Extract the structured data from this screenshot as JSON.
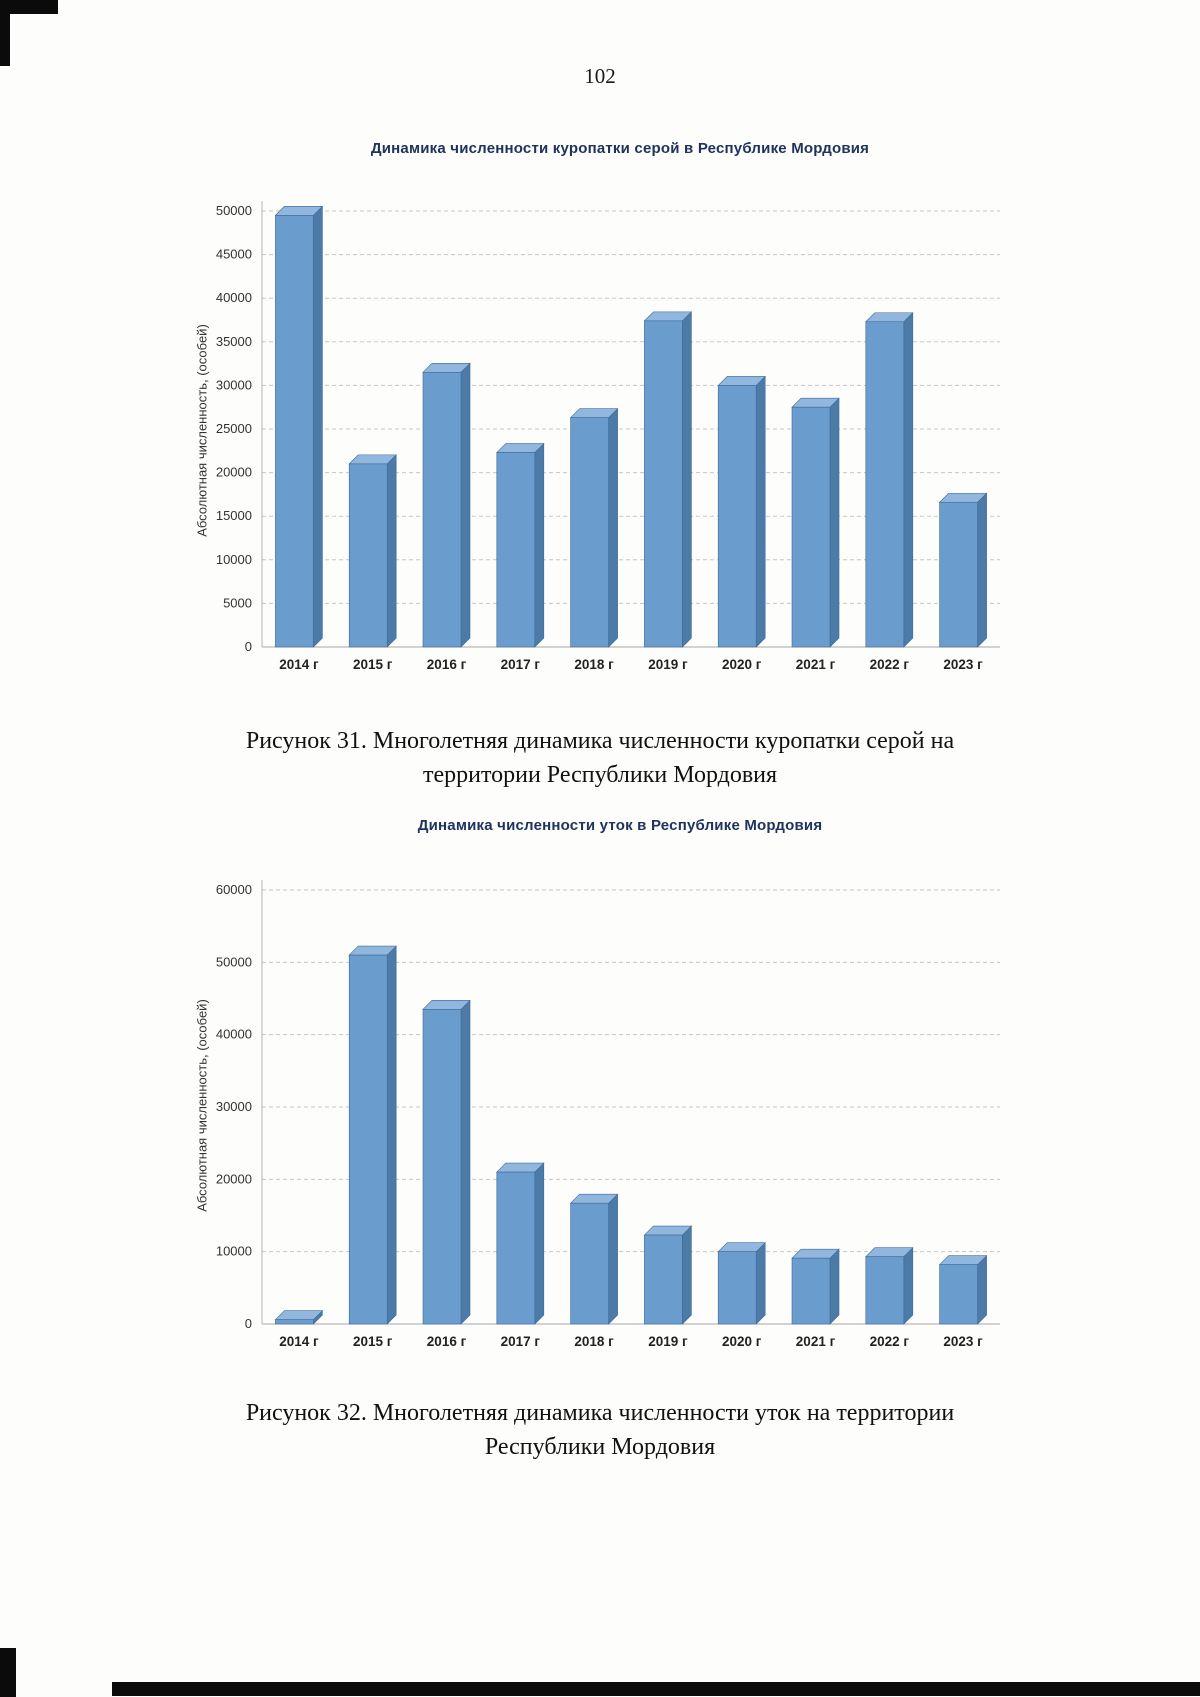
{
  "page": {
    "number": "102"
  },
  "figure31": {
    "caption_line1": "Рисунок 31. Многолетняя динамика численности куропатки серой на",
    "caption_line2": "территории Республики Мордовия"
  },
  "figure32": {
    "caption_line1": "Рисунок 32. Многолетняя динамика численности уток на территории",
    "caption_line2": "Республики Мордовия"
  },
  "chart_data": [
    {
      "type": "bar",
      "title": "Динамика численности куропатки серой в Республике Мордовия",
      "ylabel": "Абсолютная численность, (особей)",
      "xlabel": "",
      "categories": [
        "2014 г",
        "2015 г",
        "2016 г",
        "2017 г",
        "2018 г",
        "2019 г",
        "2020 г",
        "2021 г",
        "2022 г",
        "2023 г"
      ],
      "values": [
        49500,
        21000,
        31500,
        22300,
        26300,
        37400,
        30000,
        27500,
        37300,
        16600
      ],
      "ylim": [
        0,
        50000
      ],
      "ytick_step": 5000,
      "grid": true,
      "legend": false,
      "bar_color": "#6b9cce",
      "bar_top_color": "#92b7de",
      "bar_side_color": "#4d7ba8"
    },
    {
      "type": "bar",
      "title": "Динамика численности уток в Республике Мордовия",
      "ylabel": "Абсолютная численность, (особей)",
      "xlabel": "",
      "categories": [
        "2014 г",
        "2015 г",
        "2016 г",
        "2017 г",
        "2018 г",
        "2019 г",
        "2020 г",
        "2021 г",
        "2022 г",
        "2023 г"
      ],
      "values": [
        600,
        51000,
        43500,
        21000,
        16700,
        12300,
        10000,
        9100,
        9300,
        8200
      ],
      "ylim": [
        0,
        60000
      ],
      "ytick_step": 10000,
      "grid": true,
      "legend": false,
      "bar_color": "#6b9cce",
      "bar_top_color": "#92b7de",
      "bar_side_color": "#4d7ba8"
    }
  ]
}
